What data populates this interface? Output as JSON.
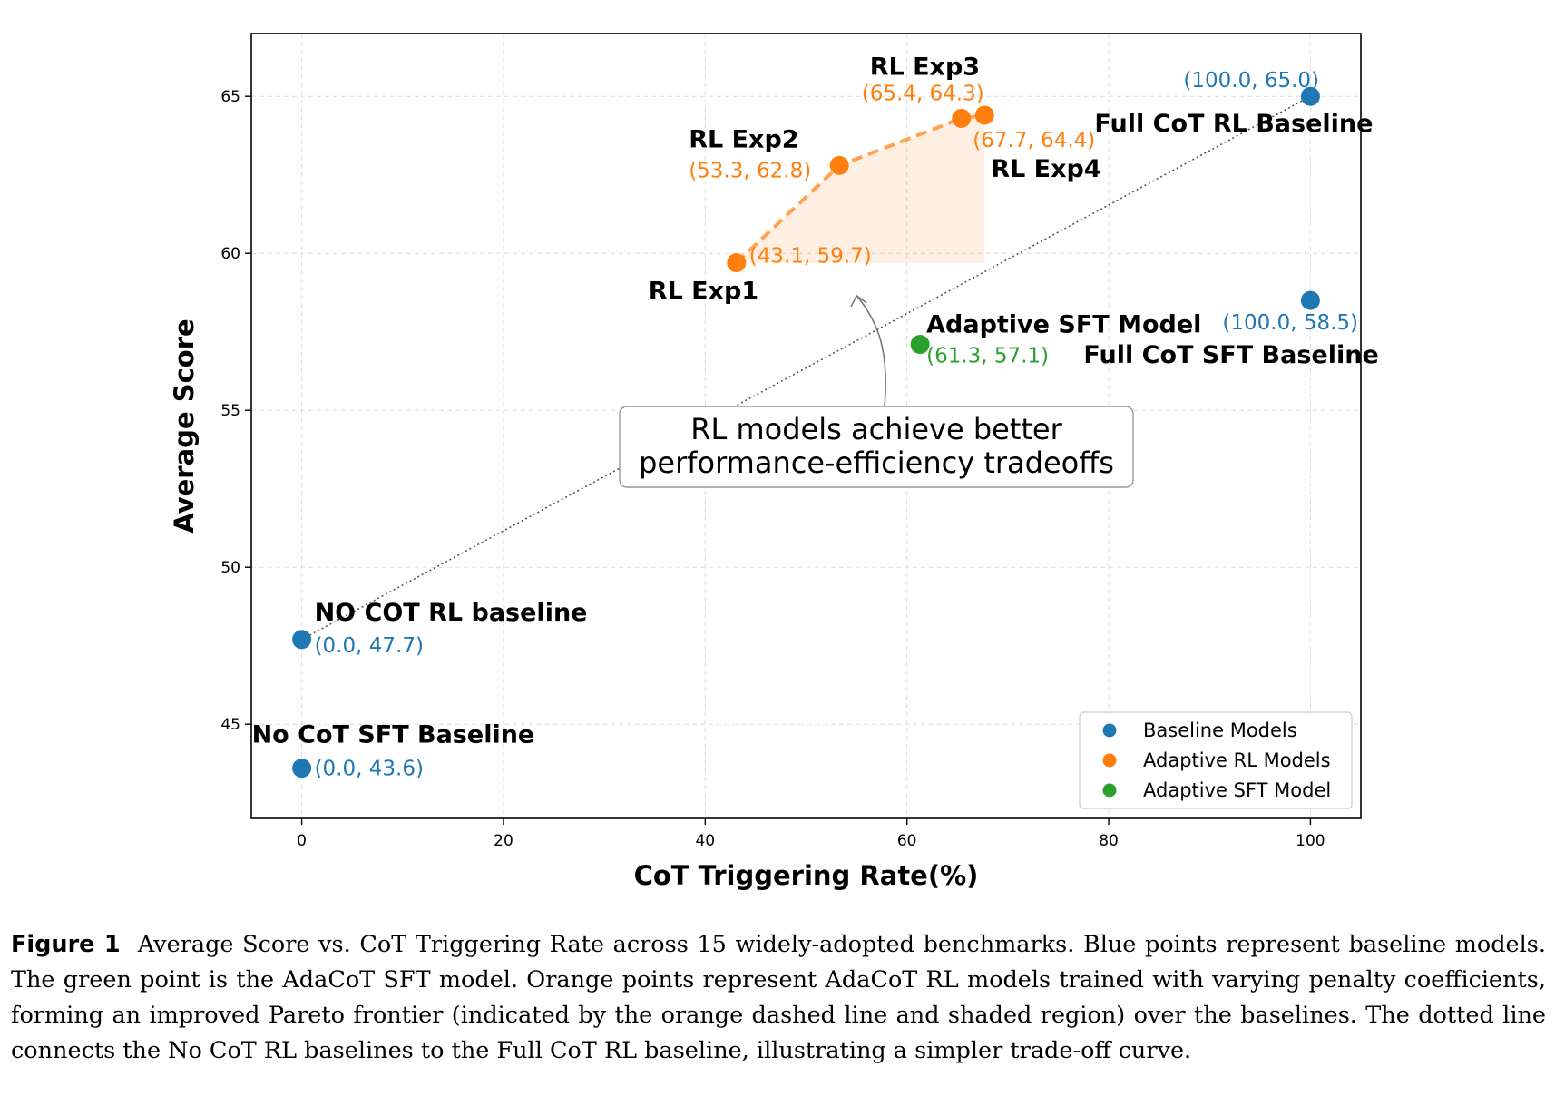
{
  "chart_data": {
    "type": "scatter",
    "xlabel": "CoT Triggering Rate(%)",
    "ylabel": "Average Score",
    "xlim": [
      -5,
      105
    ],
    "ylim": [
      42,
      67
    ],
    "x_ticks": [
      0,
      20,
      40,
      60,
      80,
      100
    ],
    "y_ticks": [
      45,
      50,
      55,
      60,
      65
    ],
    "grid": true,
    "legend_position": "bottom-right",
    "legend": [
      {
        "label": "Baseline Models",
        "color": "#1f77b4"
      },
      {
        "label": "Adaptive RL Models",
        "color": "#ff7f0e"
      },
      {
        "label": "Adaptive SFT Model",
        "color": "#2ca02c"
      }
    ],
    "points": [
      {
        "name": "NO COT RL baseline",
        "group": "Baseline Models",
        "x": 0.0,
        "y": 47.7,
        "coord": "(0.0, 47.7)"
      },
      {
        "name": "No CoT SFT Baseline",
        "group": "Baseline Models",
        "x": 0.0,
        "y": 43.6,
        "coord": "(0.0, 43.6)"
      },
      {
        "name": "Full CoT RL Baseline",
        "group": "Baseline Models",
        "x": 100.0,
        "y": 65.0,
        "coord": "(100.0, 65.0)"
      },
      {
        "name": "Full CoT SFT Baseline",
        "group": "Baseline Models",
        "x": 100.0,
        "y": 58.5,
        "coord": "(100.0, 58.5)"
      },
      {
        "name": "RL Exp1",
        "group": "Adaptive RL Models",
        "x": 43.1,
        "y": 59.7,
        "coord": "(43.1, 59.7)"
      },
      {
        "name": "RL Exp2",
        "group": "Adaptive RL Models",
        "x": 53.3,
        "y": 62.8,
        "coord": "(53.3, 62.8)"
      },
      {
        "name": "RL Exp3",
        "group": "Adaptive RL Models",
        "x": 65.4,
        "y": 64.3,
        "coord": "(65.4, 64.3)"
      },
      {
        "name": "RL Exp4",
        "group": "Adaptive RL Models",
        "x": 67.7,
        "y": 64.4,
        "coord": "(67.7, 64.4)"
      },
      {
        "name": "Adaptive SFT Model",
        "group": "Adaptive SFT Model",
        "x": 61.3,
        "y": 57.1,
        "coord": "(61.3, 57.1)"
      }
    ],
    "pareto_frontier": {
      "x": [
        43.1,
        53.3,
        65.4,
        67.7
      ],
      "y": [
        59.7,
        62.8,
        64.3,
        64.4
      ],
      "style": "dashed",
      "color": "#ff7f0e",
      "shaded": true
    },
    "baseline_line": {
      "x": [
        0.0,
        100.0
      ],
      "y": [
        47.7,
        65.0
      ],
      "style": "dotted",
      "color": "#555555"
    },
    "annotation": {
      "lines": [
        "RL models achieve better",
        "performance-efficiency tradeoffs"
      ],
      "arrow_to": [
        55,
        59
      ]
    }
  },
  "caption": {
    "label": "Figure 1",
    "text": "Average Score vs. CoT Triggering Rate across 15 widely-adopted benchmarks. Blue points represent baseline models. The green point is the AdaCoT SFT model. Orange points represent AdaCoT RL models trained with varying penalty coefficients, forming an improved Pareto frontier (indicated by the orange dashed line and shaded region) over the baselines. The dotted line connects the No CoT RL baselines to the Full CoT RL baseline, illustrating a simpler trade-off curve."
  }
}
